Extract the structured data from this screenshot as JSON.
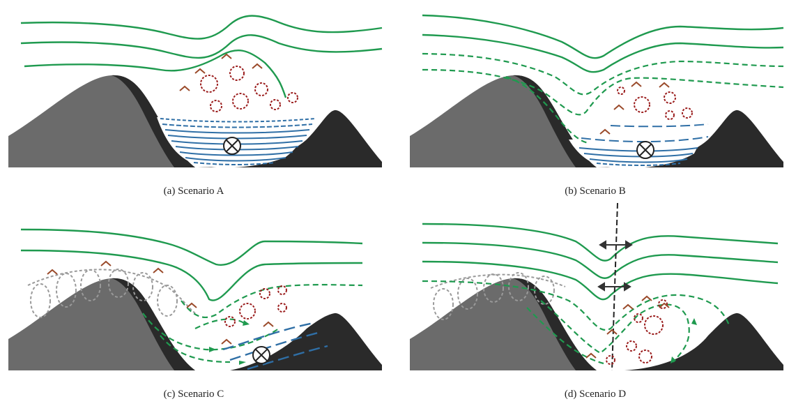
{
  "captions": {
    "a": "(a) Scenario A",
    "b": "(b) Scenario B",
    "c": "(c) Scenario C",
    "d": "(d) Scenario D"
  },
  "colors": {
    "streamline_green": "#1f9a4f",
    "mountain_dark": "#2a2a2a",
    "mountain_grey": "#6b6b6b",
    "cold_pool_blue": "#2f6fa6",
    "eddy_red": "#9a1c1c",
    "eddy_grey": "#9a9a9a",
    "arrow_dark": "#333333"
  },
  "icons": {
    "into_page": "circle-cross-icon",
    "eddy": "recirculation-eddy-icon",
    "horizontal_arrow": "double-headed-arrow-icon"
  }
}
